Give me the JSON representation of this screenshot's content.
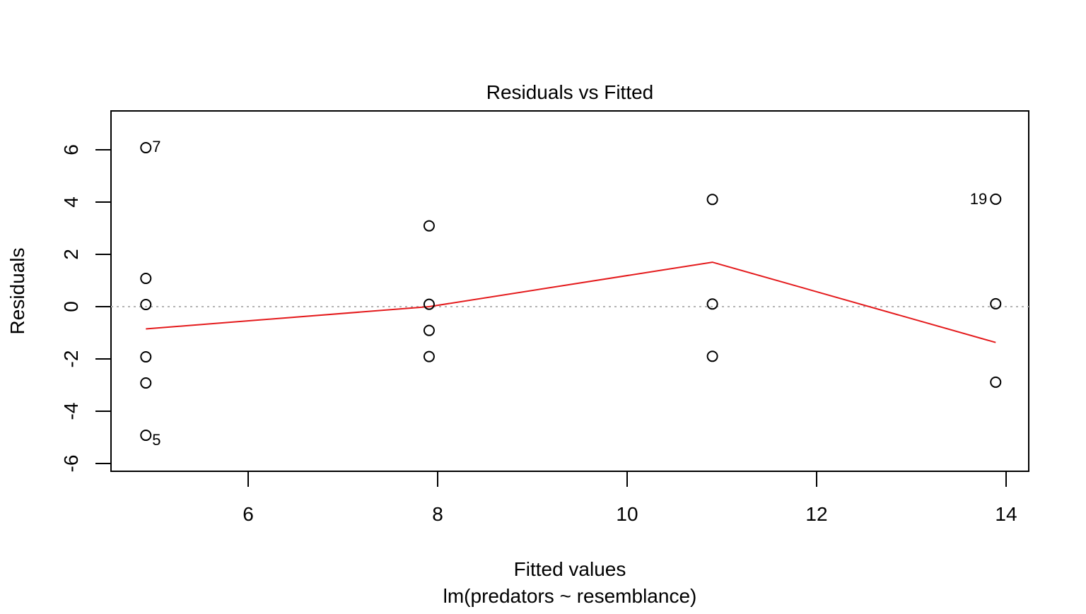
{
  "chart_data": {
    "type": "scatter",
    "title": "Residuals vs Fitted",
    "xlabel": "Fitted values",
    "subtitle": "lm(predators ~ resemblance)",
    "ylabel": "Residuals",
    "xlim": [
      4.5,
      14.5
    ],
    "ylim": [
      -6.5,
      7.5
    ],
    "x_ticks": [
      6,
      8,
      10,
      12,
      14
    ],
    "y_ticks": [
      -6,
      -4,
      -2,
      0,
      2,
      4,
      6
    ],
    "points": [
      {
        "x": 4.92,
        "y": 6.08,
        "label": "7"
      },
      {
        "x": 4.92,
        "y": 1.08
      },
      {
        "x": 4.92,
        "y": 0.08
      },
      {
        "x": 4.92,
        "y": -1.92
      },
      {
        "x": 4.92,
        "y": -2.92
      },
      {
        "x": 4.92,
        "y": -4.92,
        "label": "5"
      },
      {
        "x": 7.91,
        "y": 3.09
      },
      {
        "x": 7.91,
        "y": 0.09
      },
      {
        "x": 7.91,
        "y": -0.91
      },
      {
        "x": 7.91,
        "y": -1.91
      },
      {
        "x": 10.9,
        "y": 4.1
      },
      {
        "x": 10.9,
        "y": 0.1
      },
      {
        "x": 10.9,
        "y": -1.9
      },
      {
        "x": 13.89,
        "y": 4.11,
        "label": "19"
      },
      {
        "x": 13.89,
        "y": 0.11
      },
      {
        "x": 13.89,
        "y": -2.89
      }
    ],
    "smoother": {
      "color": "#e41a1c",
      "x": [
        4.92,
        7.91,
        10.9,
        13.89
      ],
      "y": [
        -0.85,
        0.0,
        1.7,
        -1.37
      ]
    },
    "reference_line": {
      "y": 0,
      "style": "dotted",
      "color": "#b3b3b3"
    },
    "grid": false,
    "legend": "none"
  }
}
